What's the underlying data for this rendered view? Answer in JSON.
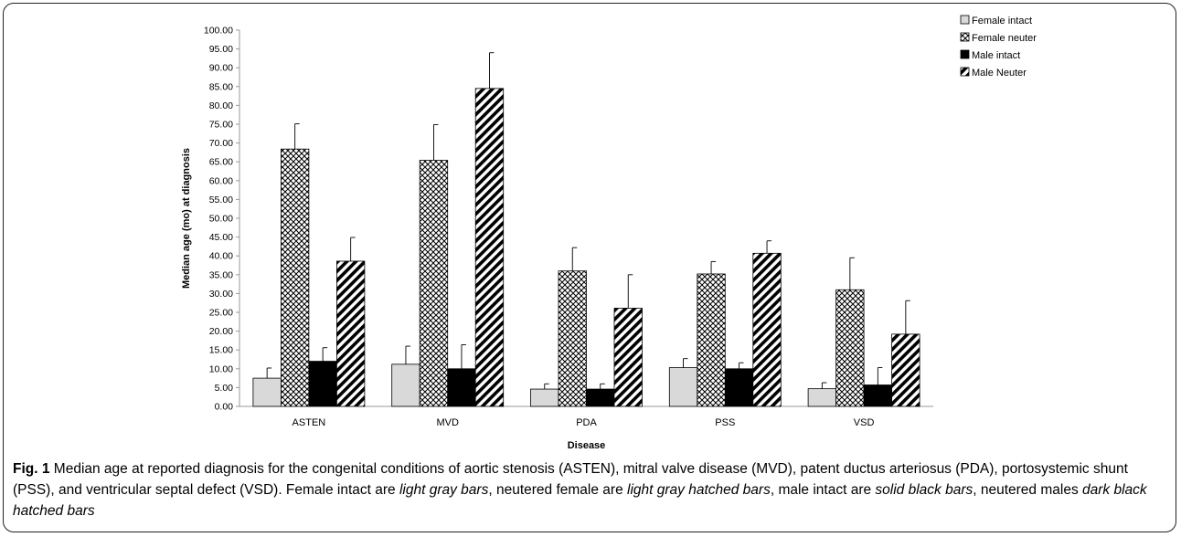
{
  "chart_data": {
    "type": "bar",
    "title": "",
    "xlabel": "Disease",
    "ylabel": "Median age (mo) at diagnosis",
    "ylim": [
      0,
      100
    ],
    "ytick_step": 5,
    "ytick_labels": [
      "0.00",
      "5.00",
      "10.00",
      "15.00",
      "20.00",
      "25.00",
      "30.00",
      "35.00",
      "40.00",
      "45.00",
      "50.00",
      "55.00",
      "60.00",
      "65.00",
      "70.00",
      "75.00",
      "80.00",
      "85.00",
      "90.00",
      "95.00",
      "100.00"
    ],
    "grid": false,
    "legend_position": "top-right",
    "categories": [
      "ASTEN",
      "MVD",
      "PDA",
      "PSS",
      "VSD"
    ],
    "series": [
      {
        "name": "Female intact",
        "fill": "#d9d9d9",
        "pattern": "solid-light-gray",
        "values": [
          7.5,
          11.2,
          4.6,
          10.3,
          4.7
        ],
        "error_upper": [
          2.7,
          4.8,
          1.4,
          2.4,
          1.6
        ]
      },
      {
        "name": "Female neuter",
        "fill": "#ffffff",
        "pattern": "crosshatch",
        "values": [
          68.4,
          65.4,
          36.0,
          35.2,
          31.0
        ],
        "error_upper": [
          6.7,
          9.5,
          6.2,
          3.3,
          8.5
        ]
      },
      {
        "name": "Male intact",
        "fill": "#000000",
        "pattern": "solid-black",
        "values": [
          12.0,
          10.0,
          4.6,
          10.0,
          5.7
        ],
        "error_upper": [
          3.6,
          6.4,
          1.4,
          1.6,
          4.6
        ]
      },
      {
        "name": "Male Neuter",
        "fill": "#ffffff",
        "pattern": "diagonal-black",
        "values": [
          38.6,
          84.5,
          26.1,
          40.7,
          19.2
        ],
        "error_upper": [
          6.3,
          9.5,
          8.9,
          3.3,
          8.9
        ]
      }
    ]
  },
  "caption": {
    "label": "Fig. 1",
    "part1": " Median age at reported diagnosis for the congenital conditions of aortic stenosis (ASTEN), mitral valve disease (MVD), patent ductus arteriosus (PDA), portosystemic shunt (PSS), and ventricular septal defect (VSD). Female intact are ",
    "italic1": "light gray bars",
    "part2": ", neutered female are ",
    "italic2": "light gray hatched bars",
    "part3": ", male intact are ",
    "italic3": "solid black bars",
    "part4": ", neutered males ",
    "italic4": "dark black hatched bars"
  }
}
